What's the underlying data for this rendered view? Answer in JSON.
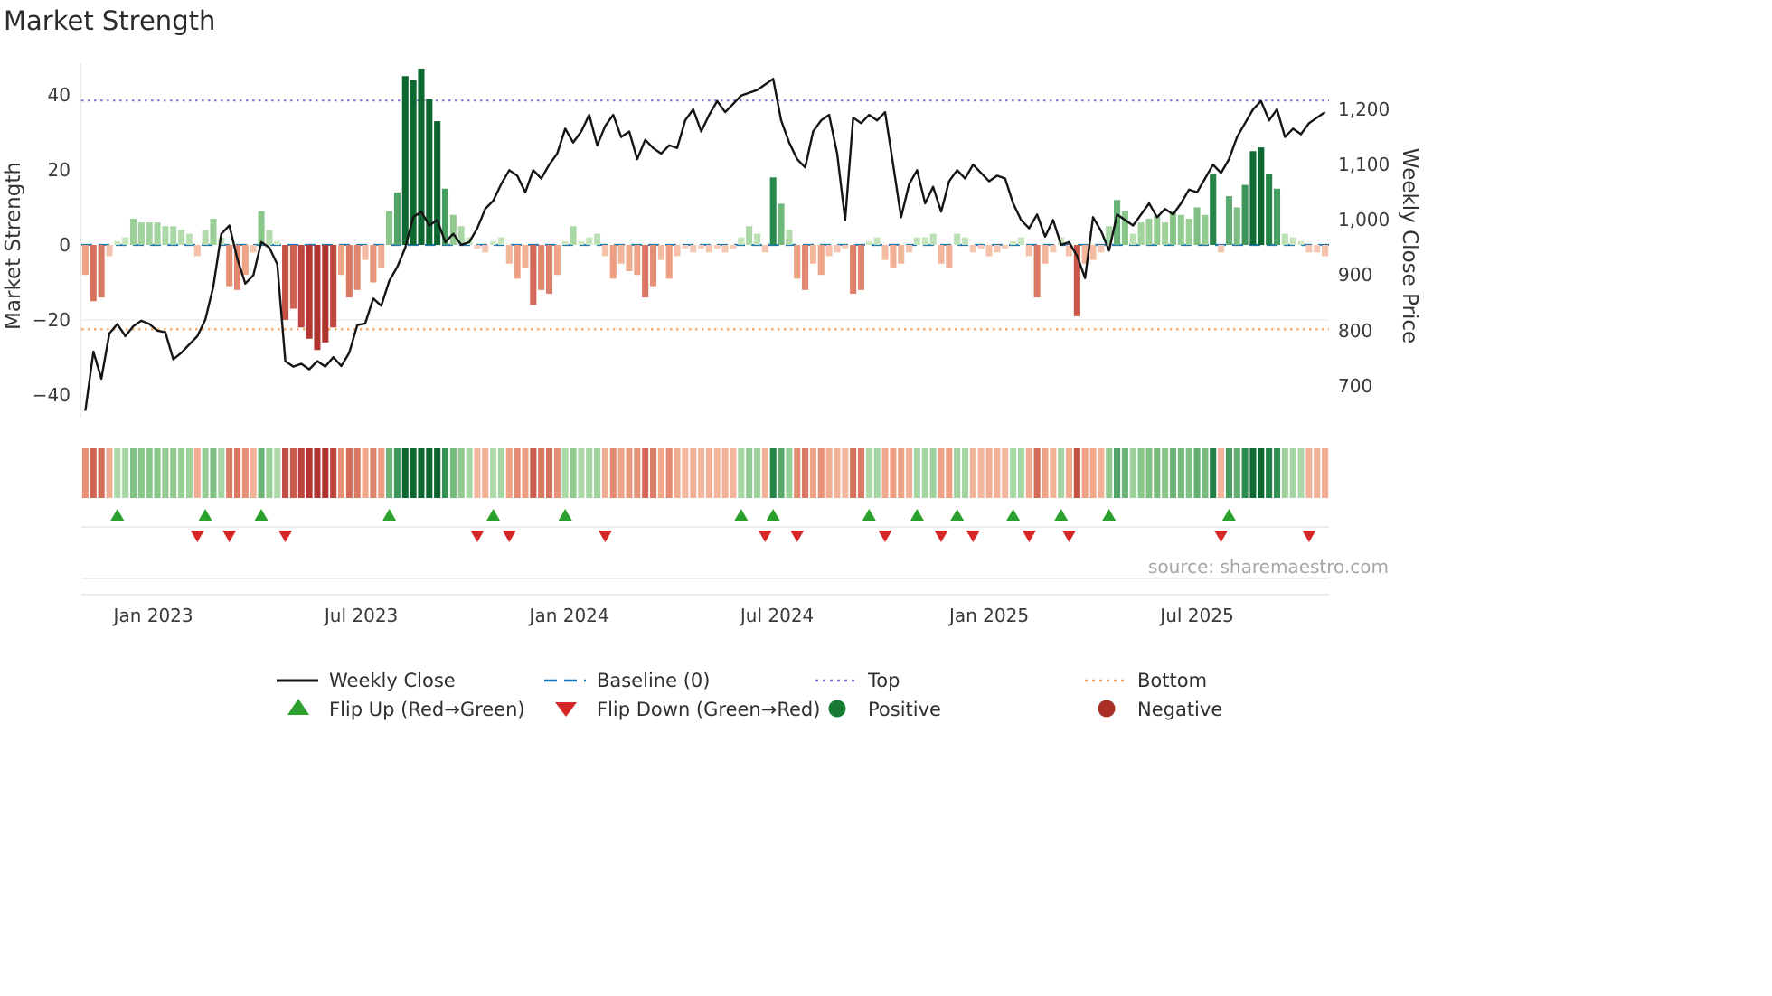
{
  "title": "Market Strength",
  "source": "source: sharemaestro.com",
  "colors": {
    "line": "#141414",
    "baseline": "#1f77b4",
    "top": "#9370db",
    "bottom": "#f4a460",
    "flip_up": "#2ca02c",
    "flip_down": "#d62728",
    "positive": "#187a33",
    "negative": "#a93226",
    "bar_green_dark": "#0c6730",
    "bar_green_light": "#d4ecca",
    "bar_red_dark": "#b2322d",
    "bar_red_light": "#f8d3be"
  },
  "axes": {
    "left_label": "Market Strength",
    "right_label": "Weekly Close Price",
    "left_ticks": [
      "40",
      "20",
      "0",
      "−20",
      "−40"
    ],
    "right_ticks": [
      "1,200",
      "1,100",
      "1,000",
      "900",
      "800",
      "700"
    ]
  },
  "chart_data": {
    "type": "combo-bar-line-heatmap",
    "x_unit": "week",
    "n_weeks": 156,
    "x_range_note": "weekly data from Nov 2022 to Oct 2025",
    "x_tick_labels": [
      "Jan 2023",
      "Jul 2023",
      "Jan 2024",
      "Jul 2024",
      "Jan 2025",
      "Jul 2025"
    ],
    "x_tick_weeks": [
      8.5,
      34.5,
      60.5,
      86.5,
      113,
      139
    ],
    "left_axis_ticks": [
      40,
      20,
      0,
      -20,
      -40
    ],
    "right_axis_ticks": [
      1200,
      1100,
      1000,
      900,
      800,
      700
    ],
    "series": [
      {
        "name": "Market Strength",
        "type": "bar",
        "axis": "left",
        "values": [
          -8,
          -15,
          -14,
          -3,
          1,
          2,
          7,
          6,
          6,
          6,
          5,
          5,
          4,
          3,
          -3,
          4,
          7,
          2,
          -11,
          -12,
          -8,
          -2,
          9,
          4,
          1,
          -20,
          -17,
          -22,
          -25,
          -28,
          -26,
          -22,
          -8,
          -14,
          -12,
          -4,
          -10,
          -6,
          9,
          14,
          45,
          44,
          47,
          39,
          33,
          15,
          8,
          5,
          2,
          -1,
          -2,
          1,
          2,
          -5,
          -9,
          -6,
          -16,
          -12,
          -13,
          -8,
          1,
          5,
          1,
          2,
          3,
          -3,
          -9,
          -5,
          -7,
          -8,
          -14,
          -11,
          -4,
          -9,
          -3,
          -1,
          -2,
          -1,
          -2,
          -1,
          -2,
          -1,
          2,
          5,
          3,
          -2,
          18,
          11,
          4,
          -9,
          -12,
          -5,
          -8,
          -3,
          -2,
          -1,
          -13,
          -12,
          1,
          2,
          -4,
          -6,
          -5,
          -2,
          2,
          2,
          3,
          -5,
          -6,
          3,
          2,
          -2,
          -1,
          -3,
          -2,
          -1,
          1,
          2,
          -3,
          -14,
          -5,
          -2,
          2,
          -3,
          -19,
          -5,
          -4,
          -2,
          5,
          12,
          9,
          3,
          6,
          7,
          8,
          6,
          9,
          8,
          7,
          10,
          8,
          19,
          -2,
          13,
          10,
          16,
          25,
          26,
          19,
          15,
          3,
          2,
          1,
          -2,
          -2,
          -3
        ]
      },
      {
        "name": "Weekly Close",
        "type": "line",
        "axis": "right",
        "values": [
          655,
          762,
          713,
          795,
          812,
          790,
          808,
          818,
          812,
          800,
          797,
          748,
          760,
          775,
          790,
          820,
          880,
          975,
          990,
          930,
          885,
          900,
          960,
          950,
          920,
          745,
          735,
          740,
          730,
          745,
          735,
          752,
          736,
          760,
          810,
          813,
          858,
          845,
          890,
          915,
          950,
          1005,
          1015,
          990,
          1000,
          960,
          975,
          955,
          960,
          985,
          1020,
          1035,
          1065,
          1090,
          1080,
          1050,
          1090,
          1075,
          1100,
          1120,
          1165,
          1140,
          1160,
          1190,
          1135,
          1170,
          1190,
          1150,
          1160,
          1110,
          1145,
          1130,
          1120,
          1135,
          1130,
          1180,
          1200,
          1160,
          1190,
          1215,
          1195,
          1210,
          1225,
          1230,
          1235,
          1245,
          1255,
          1180,
          1140,
          1110,
          1095,
          1160,
          1180,
          1190,
          1120,
          1000,
          1185,
          1175,
          1190,
          1180,
          1195,
          1100,
          1005,
          1065,
          1090,
          1030,
          1060,
          1015,
          1070,
          1090,
          1075,
          1100,
          1085,
          1070,
          1080,
          1075,
          1030,
          1000,
          985,
          1010,
          970,
          1000,
          955,
          960,
          935,
          895,
          1005,
          980,
          945,
          1010,
          1000,
          990,
          1010,
          1030,
          1005,
          1020,
          1010,
          1030,
          1055,
          1050,
          1075,
          1100,
          1085,
          1110,
          1150,
          1175,
          1200,
          1215,
          1180,
          1200,
          1150,
          1165,
          1155,
          1175,
          1185,
          1195
        ]
      }
    ],
    "reference_lines": [
      {
        "name": "Baseline (0)",
        "axis": "left",
        "value": 0,
        "style": "dashed",
        "color_key": "baseline"
      },
      {
        "name": "Top",
        "axis": "left",
        "value": 38.5,
        "style": "dotted",
        "color_key": "top"
      },
      {
        "name": "Bottom",
        "axis": "left",
        "value": -22.5,
        "style": "dotted",
        "color_key": "bottom"
      }
    ],
    "flip_up_weeks": [
      4,
      15,
      22,
      38,
      51,
      60,
      82,
      86,
      98,
      104,
      109,
      116,
      122,
      128,
      143
    ],
    "flip_down_weeks": [
      14,
      18,
      25,
      49,
      53,
      65,
      85,
      89,
      100,
      107,
      111,
      118,
      123,
      142,
      153
    ],
    "heatmap_note": "heatmap strip encodes the Market Strength bar values (red negative, green positive)"
  },
  "legend": {
    "items": [
      {
        "label": "Weekly Close"
      },
      {
        "label": "Baseline (0)"
      },
      {
        "label": "Top"
      },
      {
        "label": "Bottom"
      },
      {
        "label": "Flip Up (Red→Green)"
      },
      {
        "label": "Flip Down (Green→Red)"
      },
      {
        "label": "Positive"
      },
      {
        "label": "Negative"
      }
    ]
  }
}
